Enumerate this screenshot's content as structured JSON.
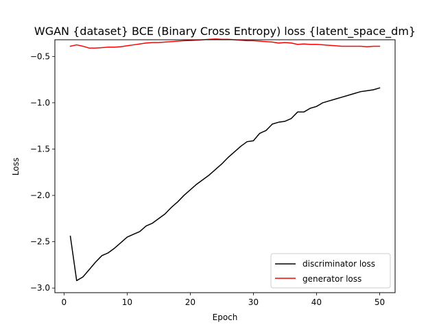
{
  "chart_data": {
    "type": "line",
    "title": "WGAN {dataset} BCE (Binary Cross Entropy) loss {latent_space_dm}",
    "xlabel": "Epoch",
    "ylabel": "Loss",
    "xlim": [
      -1.45,
      52.45
    ],
    "ylim": [
      -3.05,
      -0.32
    ],
    "xticks": [
      0,
      10,
      20,
      30,
      40,
      50
    ],
    "xtick_labels": [
      "0",
      "10",
      "20",
      "30",
      "40",
      "50"
    ],
    "yticks": [
      -3.0,
      -2.5,
      -2.0,
      -1.5,
      -1.0,
      -0.5
    ],
    "ytick_labels": [
      "−3.0",
      "−2.5",
      "−2.0",
      "−1.5",
      "−1.0",
      "−0.5"
    ],
    "grid": false,
    "legend_position": "lower-right",
    "x": [
      1,
      2,
      3,
      4,
      5,
      6,
      7,
      8,
      9,
      10,
      11,
      12,
      13,
      14,
      15,
      16,
      17,
      18,
      19,
      20,
      21,
      22,
      23,
      24,
      25,
      26,
      27,
      28,
      29,
      30,
      31,
      32,
      33,
      34,
      35,
      36,
      37,
      38,
      39,
      40,
      41,
      42,
      43,
      44,
      45,
      46,
      47,
      48,
      49,
      50
    ],
    "series": [
      {
        "name": "discriminator loss",
        "color": "#000000",
        "values": [
          -2.44,
          -2.92,
          -2.88,
          -2.8,
          -2.72,
          -2.65,
          -2.62,
          -2.57,
          -2.51,
          -2.45,
          -2.42,
          -2.39,
          -2.33,
          -2.3,
          -2.25,
          -2.2,
          -2.13,
          -2.07,
          -2.0,
          -1.94,
          -1.88,
          -1.83,
          -1.78,
          -1.72,
          -1.66,
          -1.59,
          -1.53,
          -1.47,
          -1.42,
          -1.41,
          -1.33,
          -1.3,
          -1.23,
          -1.21,
          -1.2,
          -1.17,
          -1.1,
          -1.1,
          -1.06,
          -1.04,
          -1.0,
          -0.98,
          -0.96,
          -0.94,
          -0.92,
          -0.9,
          -0.88,
          -0.87,
          -0.86,
          -0.84
        ]
      },
      {
        "name": "generator loss",
        "color": "#ff0000",
        "values": [
          -0.39,
          -0.375,
          -0.39,
          -0.41,
          -0.41,
          -0.405,
          -0.4,
          -0.4,
          -0.395,
          -0.385,
          -0.375,
          -0.365,
          -0.355,
          -0.35,
          -0.35,
          -0.345,
          -0.34,
          -0.335,
          -0.33,
          -0.328,
          -0.325,
          -0.32,
          -0.315,
          -0.312,
          -0.315,
          -0.315,
          -0.32,
          -0.325,
          -0.33,
          -0.33,
          -0.335,
          -0.34,
          -0.345,
          -0.355,
          -0.35,
          -0.355,
          -0.37,
          -0.365,
          -0.37,
          -0.37,
          -0.375,
          -0.38,
          -0.385,
          -0.39,
          -0.39,
          -0.39,
          -0.39,
          -0.395,
          -0.39,
          -0.39
        ]
      }
    ]
  }
}
